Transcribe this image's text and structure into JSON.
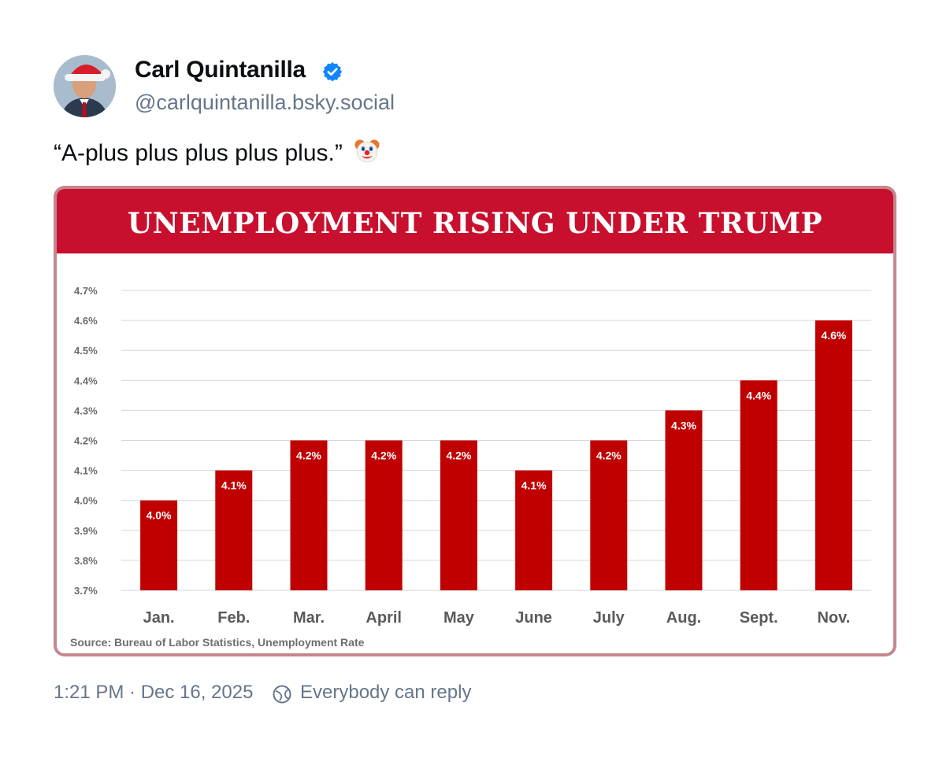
{
  "post": {
    "author_name": "Carl Quintanilla",
    "handle": "@carlquintanilla.bsky.social",
    "text": "“A-plus plus plus plus plus.”",
    "emoji_icon": "clown-face",
    "timestamp": "1:21 PM · Dec 16, 2025",
    "reply_setting": "Everybody can reply"
  },
  "chart_data": {
    "type": "bar",
    "title": "UNEMPLOYMENT RISING UNDER TRUMP",
    "categories": [
      "Jan.",
      "Feb.",
      "Mar.",
      "April",
      "May",
      "June",
      "July",
      "Aug.",
      "Sept.",
      "Nov."
    ],
    "values": [
      4.0,
      4.1,
      4.2,
      4.2,
      4.2,
      4.1,
      4.2,
      4.3,
      4.4,
      4.6
    ],
    "data_labels": [
      "4.0%",
      "4.1%",
      "4.2%",
      "4.2%",
      "4.2%",
      "4.1%",
      "4.2%",
      "4.3%",
      "4.4%",
      "4.6%"
    ],
    "y_ticks": [
      "3.7%",
      "3.8%",
      "3.9%",
      "4.0%",
      "4.1%",
      "4.2%",
      "4.3%",
      "4.4%",
      "4.5%",
      "4.6%",
      "4.7%"
    ],
    "ylim": [
      3.7,
      4.7
    ],
    "grid": true,
    "xlabel": "",
    "ylabel": "",
    "source": "Source: Bureau of Labor Statistics, Unemployment Rate",
    "colors": {
      "bar": "#c00000",
      "banner": "#c8102e",
      "label": "#ffffff"
    }
  },
  "colors": {
    "accent": "#1185fe",
    "muted": "#66768a"
  }
}
